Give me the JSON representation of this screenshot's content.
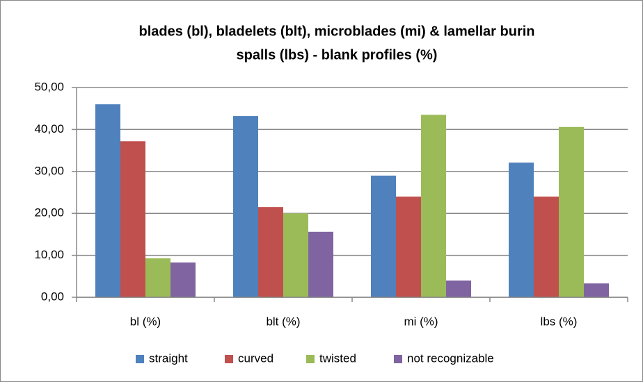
{
  "chart_data": {
    "type": "bar",
    "title": [
      "blades (bl), bladelets (blt), microblades (mi) & lamellar burin",
      "spalls (lbs) - blank profiles (%)"
    ],
    "categories": [
      "bl (%)",
      "blt (%)",
      "mi (%)",
      "lbs (%)"
    ],
    "series": [
      {
        "name": "straight",
        "color": "#4f81bd",
        "values": [
          46.0,
          43.2,
          29.0,
          32.1
        ]
      },
      {
        "name": "curved",
        "color": "#c0504d",
        "values": [
          37.2,
          21.5,
          24.0,
          24.0
        ]
      },
      {
        "name": "twisted",
        "color": "#9bbb59",
        "values": [
          9.3,
          20.0,
          43.5,
          40.6
        ]
      },
      {
        "name": "not recognizable",
        "color": "#8064a2",
        "values": [
          8.3,
          15.6,
          4.0,
          3.3
        ]
      }
    ],
    "ylim": [
      0,
      50
    ],
    "yticks": [
      {
        "value": 0,
        "label": "0,00"
      },
      {
        "value": 10,
        "label": "10,00"
      },
      {
        "value": 20,
        "label": "20,00"
      },
      {
        "value": 30,
        "label": "30,00"
      },
      {
        "value": 40,
        "label": "40,00"
      },
      {
        "value": 50,
        "label": "50,00"
      }
    ],
    "grid": true,
    "legend": "bottom"
  }
}
